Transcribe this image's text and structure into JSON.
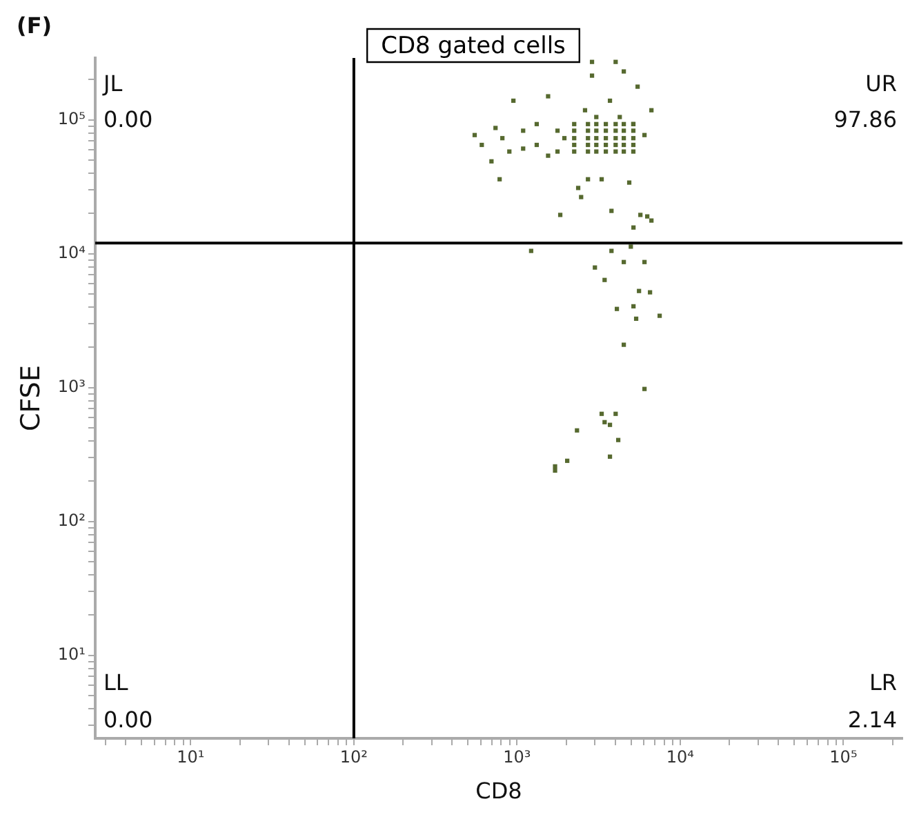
{
  "chart_data": {
    "type": "scatter",
    "title": "CD8 gated cells",
    "xlabel": "CD8",
    "ylabel": "CFSE",
    "annotations": [
      "(F)",
      "JL",
      "0.00",
      "UR",
      "97.86",
      "LL",
      "0.00",
      "LR",
      "2.14"
    ],
    "log": "xy",
    "marker": "square",
    "xlim": [
      2.6,
      230000
    ],
    "ylim": [
      2.4,
      290000
    ],
    "xticks": [
      {
        "value": 3,
        "label": null
      },
      {
        "value": 4,
        "label": null
      },
      {
        "value": 5,
        "label": null
      },
      {
        "value": 6,
        "label": null
      },
      {
        "value": 7,
        "label": null
      },
      {
        "value": 8,
        "label": null
      },
      {
        "value": 9,
        "label": null
      },
      {
        "value": 10,
        "label": "10¹"
      },
      {
        "value": 20,
        "label": null
      },
      {
        "value": 30,
        "label": null
      },
      {
        "value": 40,
        "label": null
      },
      {
        "value": 50,
        "label": null
      },
      {
        "value": 60,
        "label": null
      },
      {
        "value": 70,
        "label": null
      },
      {
        "value": 80,
        "label": null
      },
      {
        "value": 90,
        "label": null
      },
      {
        "value": 100,
        "label": "10²"
      },
      {
        "value": 200,
        "label": null
      },
      {
        "value": 300,
        "label": null
      },
      {
        "value": 400,
        "label": null
      },
      {
        "value": 500,
        "label": null
      },
      {
        "value": 600,
        "label": null
      },
      {
        "value": 700,
        "label": null
      },
      {
        "value": 800,
        "label": null
      },
      {
        "value": 900,
        "label": null
      },
      {
        "value": 1000,
        "label": "10³"
      },
      {
        "value": 2000,
        "label": null
      },
      {
        "value": 3000,
        "label": null
      },
      {
        "value": 4000,
        "label": null
      },
      {
        "value": 5000,
        "label": null
      },
      {
        "value": 6000,
        "label": null
      },
      {
        "value": 7000,
        "label": null
      },
      {
        "value": 8000,
        "label": null
      },
      {
        "value": 9000,
        "label": null
      },
      {
        "value": 10000,
        "label": "10⁴"
      },
      {
        "value": 20000,
        "label": null
      },
      {
        "value": 30000,
        "label": null
      },
      {
        "value": 40000,
        "label": null
      },
      {
        "value": 50000,
        "label": null
      },
      {
        "value": 60000,
        "label": null
      },
      {
        "value": 70000,
        "label": null
      },
      {
        "value": 80000,
        "label": null
      },
      {
        "value": 90000,
        "label": null
      },
      {
        "value": 100000,
        "label": "10⁵"
      },
      {
        "value": 200000,
        "label": null
      }
    ],
    "yticks": [
      {
        "value": 3,
        "label": null
      },
      {
        "value": 4,
        "label": null
      },
      {
        "value": 5,
        "label": null
      },
      {
        "value": 6,
        "label": null
      },
      {
        "value": 7,
        "label": null
      },
      {
        "value": 8,
        "label": null
      },
      {
        "value": 9,
        "label": null
      },
      {
        "value": 10,
        "label": "10¹"
      },
      {
        "value": 20,
        "label": null
      },
      {
        "value": 30,
        "label": null
      },
      {
        "value": 40,
        "label": null
      },
      {
        "value": 50,
        "label": null
      },
      {
        "value": 60,
        "label": null
      },
      {
        "value": 70,
        "label": null
      },
      {
        "value": 80,
        "label": null
      },
      {
        "value": 90,
        "label": null
      },
      {
        "value": 100,
        "label": "10²"
      },
      {
        "value": 200,
        "label": null
      },
      {
        "value": 300,
        "label": null
      },
      {
        "value": 400,
        "label": null
      },
      {
        "value": 500,
        "label": null
      },
      {
        "value": 600,
        "label": null
      },
      {
        "value": 700,
        "label": null
      },
      {
        "value": 800,
        "label": null
      },
      {
        "value": 900,
        "label": null
      },
      {
        "value": 1000,
        "label": "10³"
      },
      {
        "value": 2000,
        "label": null
      },
      {
        "value": 3000,
        "label": null
      },
      {
        "value": 4000,
        "label": null
      },
      {
        "value": 5000,
        "label": null
      },
      {
        "value": 6000,
        "label": null
      },
      {
        "value": 7000,
        "label": null
      },
      {
        "value": 8000,
        "label": null
      },
      {
        "value": 9000,
        "label": null
      },
      {
        "value": 10000,
        "label": "10⁴"
      },
      {
        "value": 20000,
        "label": null
      },
      {
        "value": 30000,
        "label": null
      },
      {
        "value": 40000,
        "label": null
      },
      {
        "value": 50000,
        "label": null
      },
      {
        "value": 60000,
        "label": null
      },
      {
        "value": 70000,
        "label": null
      },
      {
        "value": 80000,
        "label": null
      },
      {
        "value": 90000,
        "label": null
      },
      {
        "value": 100000,
        "label": "10⁵"
      },
      {
        "value": 200000,
        "label": null
      }
    ],
    "ref_lines": [
      {
        "axis": "x",
        "value": 100,
        "color": "#000000"
      },
      {
        "axis": "y",
        "value": 12000,
        "color": "#000000"
      }
    ],
    "series": [
      {
        "color": "#56692f",
        "x": [
          2880,
          4020,
          2880,
          4510,
          950,
          1550,
          738,
          697,
          782,
          6660,
          5480,
          2720,
          3300,
          4870,
          2370,
          813,
          1090,
          1090,
          1320,
          1320,
          608,
          550,
          1770,
          1770,
          1950,
          1550,
          897,
          2610,
          3710,
          4260,
          3060,
          5160,
          6040,
          2240,
          2720,
          3060,
          3500,
          4020,
          4510,
          5160,
          2240,
          2720,
          3060,
          3500,
          4020,
          4510,
          5160,
          2240,
          2720,
          3060,
          3500,
          4020,
          4510,
          5160,
          2240,
          2720,
          3060,
          3500,
          4020,
          4510,
          5160,
          2240,
          2720,
          3060,
          3500,
          4020,
          4510,
          5160,
          2470,
          1840,
          3790,
          5700,
          6280,
          6660,
          5170,
          1220,
          3790,
          4980,
          3000,
          4510,
          6040,
          3440,
          5590,
          6530,
          4090,
          5170,
          5370,
          7480,
          4510,
          6040,
          3300,
          4020,
          3440,
          3710,
          2330,
          4170,
          3710,
          2030,
          1710,
          1710
        ],
        "values": [
          271000,
          271000,
          214000,
          230000,
          139000,
          150000,
          87000,
          49000,
          36000,
          118000,
          177000,
          36000,
          36000,
          34000,
          31000,
          73000,
          83000,
          61000,
          93000,
          65000,
          65000,
          77000,
          83000,
          58000,
          73000,
          54000,
          58000,
          118000,
          139000,
          105000,
          105000,
          93000,
          77000,
          93000,
          93000,
          93000,
          93000,
          93000,
          93000,
          93000,
          83000,
          83000,
          83000,
          83000,
          83000,
          83000,
          83000,
          73000,
          73000,
          73000,
          73000,
          73000,
          73000,
          73000,
          65000,
          65000,
          65000,
          65000,
          65000,
          65000,
          65000,
          58000,
          58000,
          58000,
          58000,
          58000,
          58000,
          58000,
          26500,
          19500,
          20900,
          19500,
          19000,
          17700,
          15700,
          10500,
          10500,
          11300,
          7890,
          8670,
          8670,
          6370,
          5270,
          5150,
          3870,
          4050,
          3270,
          3440,
          2090,
          977,
          637,
          637,
          552,
          527,
          479,
          406,
          305,
          284,
          258,
          240
        ]
      }
    ]
  }
}
